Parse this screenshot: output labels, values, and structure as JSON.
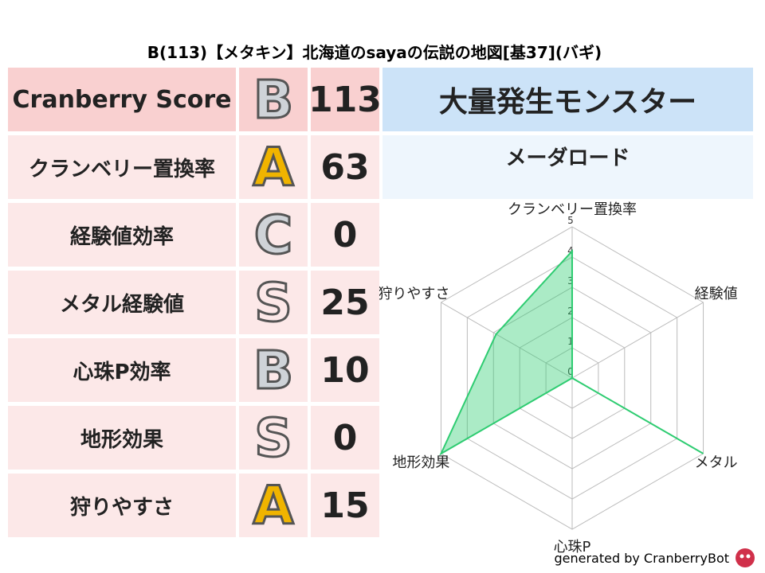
{
  "title": "B(113)【メタキン】北海道のsayaの伝説の地図[基37](バギ)",
  "score_table": {
    "rows": [
      {
        "label": "Cranberry Score",
        "grade": "B",
        "value": "113"
      },
      {
        "label": "クランベリー置換率",
        "grade": "A",
        "value": "63"
      },
      {
        "label": "経験値効率",
        "grade": "C",
        "value": "0"
      },
      {
        "label": "メタル経験値",
        "grade": "S",
        "value": "25"
      },
      {
        "label": "心珠P効率",
        "grade": "B",
        "value": "10"
      },
      {
        "label": "地形効果",
        "grade": "S",
        "value": "0"
      },
      {
        "label": "狩りやすさ",
        "grade": "A",
        "value": "15"
      }
    ]
  },
  "monster": {
    "header": "大量発生モンスター",
    "name": "メーダロード"
  },
  "chart_data": {
    "type": "radar",
    "axes": [
      "クランベリー置換率",
      "経験値",
      "メタル",
      "心珠P",
      "地形効果",
      "狩りやすさ"
    ],
    "values": [
      4.2,
      0,
      5,
      0,
      5,
      2.9
    ],
    "rlim": [
      0,
      5
    ],
    "rticks": [
      0,
      1,
      2,
      3,
      4,
      5
    ],
    "color": "#2ecc71"
  },
  "footer": "generated by CranberryBot"
}
